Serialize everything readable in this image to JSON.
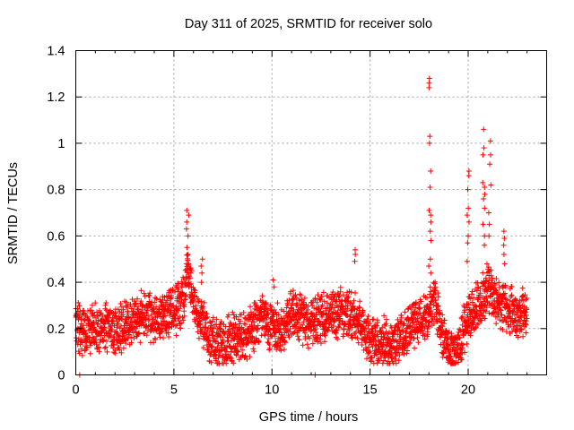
{
  "chart_data": {
    "type": "scatter",
    "title": "Day 311 of 2025, SRMTID for receiver solo",
    "xlabel": "GPS time / hours",
    "ylabel": "SRMTID / TECUs",
    "xlim": [
      0,
      24
    ],
    "ylim": [
      0,
      1.4
    ],
    "x_ticks": [
      0,
      5,
      10,
      15,
      20
    ],
    "x_tick_labels": [
      "0",
      "5",
      "10",
      "15",
      "20"
    ],
    "y_ticks": [
      0,
      0.2,
      0.4,
      0.6,
      0.8,
      1,
      1.2,
      1.4
    ],
    "y_tick_labels": [
      "0",
      "0.2",
      "0.4",
      "0.6",
      "0.8",
      "1",
      "1.2",
      "1.4"
    ],
    "grid": true,
    "marker": "plus",
    "color": "#ff0000",
    "series": [
      {
        "name": "SRMTID",
        "profile_x": [
          0,
          0.5,
          1,
          1.5,
          2,
          2.5,
          3,
          3.5,
          4,
          4.5,
          5,
          5.5,
          5.7,
          6,
          6.5,
          7,
          7.5,
          8,
          8.5,
          9,
          9.5,
          10,
          10.5,
          11,
          11.5,
          12,
          12.5,
          13,
          13.5,
          14,
          14.5,
          15,
          15.5,
          16,
          16.5,
          17,
          17.5,
          18,
          18.3,
          18.6,
          19,
          19.5,
          20,
          20.5,
          21,
          21.5,
          22,
          22.5,
          23
        ],
        "profile_y": [
          0.2,
          0.19,
          0.2,
          0.21,
          0.19,
          0.22,
          0.24,
          0.26,
          0.23,
          0.26,
          0.28,
          0.32,
          0.45,
          0.3,
          0.22,
          0.14,
          0.13,
          0.16,
          0.17,
          0.2,
          0.25,
          0.21,
          0.19,
          0.26,
          0.24,
          0.22,
          0.25,
          0.26,
          0.27,
          0.26,
          0.24,
          0.13,
          0.15,
          0.12,
          0.16,
          0.2,
          0.23,
          0.28,
          0.32,
          0.2,
          0.1,
          0.12,
          0.25,
          0.3,
          0.38,
          0.32,
          0.28,
          0.26,
          0.28
        ],
        "peaks": [
          {
            "x": 5.7,
            "values": [
              0.71,
              0.69,
              0.66,
              0.63,
              0.6,
              0.55,
              0.52,
              0.48
            ]
          },
          {
            "x": 6.4,
            "values": [
              0.5,
              0.47,
              0.44,
              0.4
            ]
          },
          {
            "x": 10.1,
            "values": [
              0.41,
              0.38
            ]
          },
          {
            "x": 14.2,
            "values": [
              0.54,
              0.52,
              0.49
            ]
          },
          {
            "x": 18.05,
            "values": [
              1.28,
              1.26,
              1.24,
              1.03,
              1.0,
              0.88,
              0.81,
              0.71,
              0.69,
              0.66,
              0.62,
              0.58,
              0.5,
              0.47,
              0.44
            ]
          },
          {
            "x": 20.0,
            "values": [
              0.88,
              0.86,
              0.8,
              0.72,
              0.69,
              0.66,
              0.6,
              0.57,
              0.49
            ]
          },
          {
            "x": 20.8,
            "values": [
              1.06,
              0.98,
              0.95,
              0.83,
              0.81,
              0.78,
              0.76,
              0.72,
              0.65,
              0.6,
              0.56
            ]
          },
          {
            "x": 21.1,
            "values": [
              1.01,
              0.95,
              0.91,
              0.82,
              0.7,
              0.65,
              0.6
            ]
          },
          {
            "x": 21.8,
            "values": [
              0.62,
              0.59,
              0.56,
              0.52,
              0.48
            ]
          }
        ],
        "outliers": [
          [
            0.2,
            0.0
          ],
          [
            12.2,
            0.0
          ]
        ]
      }
    ]
  }
}
